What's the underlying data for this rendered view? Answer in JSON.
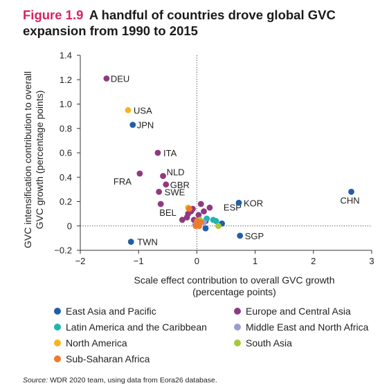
{
  "figure": {
    "label": "Figure 1.9",
    "title": "A handful of countries drove global GVC expansion from 1990 to 2015"
  },
  "source": {
    "label": "Source:",
    "text": "WDR 2020 team, using data from Eora26 database."
  },
  "chart_data": {
    "type": "scatter",
    "xlabel_lines": [
      "Scale effect contribution to overall GVC growth",
      "(percentage points)"
    ],
    "ylabel_lines": [
      "GVC intensification contribution to overall",
      "GVC growth (percentage points)"
    ],
    "xlim": [
      -2,
      3
    ],
    "ylim": [
      -0.2,
      1.4
    ],
    "xticks": [
      -2,
      -1,
      0,
      1,
      2,
      3
    ],
    "yticks": [
      -0.2,
      0,
      0.2,
      0.4,
      0.6,
      0.8,
      1.0,
      1.2,
      1.4
    ],
    "xtick_labels": [
      "−2",
      "−1",
      "0",
      "1",
      "2",
      "3"
    ],
    "ytick_labels": [
      "−0.2",
      "0",
      "0.2",
      "0.4",
      "0.6",
      "0.8",
      "1.0",
      "1.2",
      "1.4"
    ],
    "grid": false,
    "reference_lines": [
      "x=0",
      "y=0"
    ],
    "legend_position": "bottom",
    "groups": [
      {
        "name": "East Asia and Pacific",
        "color": "#1f5fa6"
      },
      {
        "name": "Europe and Central Asia",
        "color": "#8e3a80"
      },
      {
        "name": "Latin America and the Caribbean",
        "color": "#1fb5b0"
      },
      {
        "name": "Middle East and North Africa",
        "color": "#9a9ccf"
      },
      {
        "name": "North America",
        "color": "#f7b41e"
      },
      {
        "name": "South Asia",
        "color": "#a8c83a"
      },
      {
        "name": "Sub-Saharan Africa",
        "color": "#f07a2b"
      }
    ],
    "points": [
      {
        "label": "DEU",
        "group": 1,
        "x": -1.55,
        "y": 1.21
      },
      {
        "label": "USA",
        "group": 4,
        "x": -1.18,
        "y": 0.95
      },
      {
        "label": "JPN",
        "group": 0,
        "x": -1.1,
        "y": 0.83
      },
      {
        "label": "ITA",
        "group": 1,
        "x": -0.67,
        "y": 0.6
      },
      {
        "label": "NLD",
        "group": 1,
        "x": -0.58,
        "y": 0.41
      },
      {
        "label": "FRA",
        "group": 1,
        "x": -0.98,
        "y": 0.43
      },
      {
        "label": "GBR",
        "group": 1,
        "x": -0.53,
        "y": 0.34
      },
      {
        "label": "SWE",
        "group": 1,
        "x": -0.65,
        "y": 0.28
      },
      {
        "label": "BEL",
        "group": 1,
        "x": -0.62,
        "y": 0.18
      },
      {
        "label": "ESP",
        "group": 1,
        "x": 0.22,
        "y": 0.15
      },
      {
        "label": "KOR",
        "group": 0,
        "x": 0.72,
        "y": 0.19
      },
      {
        "label": "CHN",
        "group": 0,
        "x": 2.65,
        "y": 0.28
      },
      {
        "label": "SGP",
        "group": 0,
        "x": 0.74,
        "y": -0.08
      },
      {
        "label": "TWN",
        "group": 0,
        "x": -1.13,
        "y": -0.13
      },
      {
        "label": "",
        "group": 1,
        "x": 0.07,
        "y": 0.18
      },
      {
        "label": "",
        "group": 1,
        "x": 0.12,
        "y": 0.12
      },
      {
        "label": "",
        "group": 1,
        "x": -0.1,
        "y": 0.12
      },
      {
        "label": "",
        "group": 1,
        "x": -0.15,
        "y": 0.1
      },
      {
        "label": "",
        "group": 1,
        "x": -0.17,
        "y": 0.07
      },
      {
        "label": "",
        "group": 1,
        "x": -0.07,
        "y": 0.14
      },
      {
        "label": "",
        "group": 1,
        "x": 0.03,
        "y": 0.09
      },
      {
        "label": "",
        "group": 1,
        "x": -0.05,
        "y": 0.05
      },
      {
        "label": "",
        "group": 1,
        "x": 0.15,
        "y": 0.04
      },
      {
        "label": "",
        "group": 1,
        "x": -0.25,
        "y": 0.05
      },
      {
        "label": "",
        "group": 0,
        "x": 0.43,
        "y": 0.02
      },
      {
        "label": "",
        "group": 0,
        "x": 0.15,
        "y": -0.02
      },
      {
        "label": "",
        "group": 0,
        "x": 0.02,
        "y": 0.03
      },
      {
        "label": "",
        "group": 2,
        "x": 0.28,
        "y": 0.05
      },
      {
        "label": "",
        "group": 2,
        "x": 0.33,
        "y": 0.04
      },
      {
        "label": "",
        "group": 2,
        "x": 0.17,
        "y": 0.06
      },
      {
        "label": "",
        "group": 3,
        "x": 0.12,
        "y": 0.03
      },
      {
        "label": "",
        "group": 3,
        "x": -0.03,
        "y": 0.01
      },
      {
        "label": "",
        "group": 4,
        "x": -0.15,
        "y": 0.15
      },
      {
        "label": "",
        "group": 5,
        "x": 0.37,
        "y": 0.0
      },
      {
        "label": "",
        "group": 5,
        "x": 0.05,
        "y": 0.05
      },
      {
        "label": "",
        "group": 6,
        "x": -0.13,
        "y": 0.14
      },
      {
        "label": "",
        "group": 6,
        "x": 0.01,
        "y": 0.02
      },
      {
        "label": "",
        "group": 6,
        "x": 0.04,
        "y": 0.0
      },
      {
        "label": "",
        "group": 6,
        "x": 0.0,
        "y": 0.04
      },
      {
        "label": "",
        "group": 6,
        "x": -0.02,
        "y": 0.0
      },
      {
        "label": "",
        "group": 6,
        "x": 0.06,
        "y": 0.03
      }
    ]
  }
}
